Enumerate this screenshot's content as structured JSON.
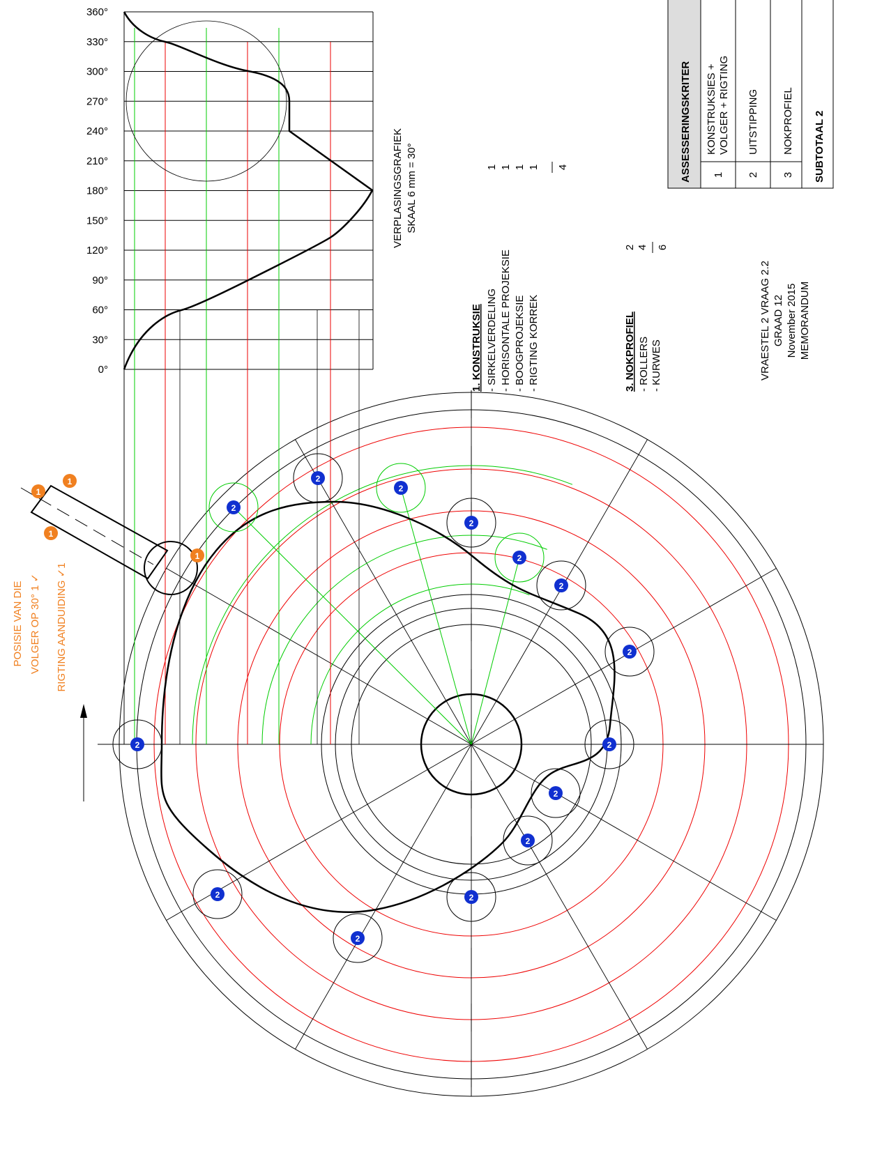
{
  "graph": {
    "angle_labels": [
      "0°",
      "30°",
      "60°",
      "90°",
      "120°",
      "150°",
      "180°",
      "210°",
      "240°",
      "270°",
      "300°",
      "330°",
      "360°"
    ],
    "title": "VERPLASINGSGRAFIEK",
    "scale": "SKAAL 6 mm = 30°"
  },
  "konstruksie": {
    "heading": "1. KONSTRUKSIE",
    "items": [
      {
        "label": "- SIRKELVERDELING",
        "mark": "1"
      },
      {
        "label": "- HORISONTALE PROJEKSIE",
        "mark": "1"
      },
      {
        "label": "- BOOGPROJEKSIE",
        "mark": "1"
      },
      {
        "label": "- RIGTING KORREK",
        "mark": "1"
      }
    ],
    "total": "4"
  },
  "nokprofiel": {
    "heading": "3. NOKPROFIEL",
    "items": [
      {
        "label": "- ROLLERS",
        "mark": "2"
      },
      {
        "label": "- KURWES",
        "mark": "4"
      }
    ],
    "total": "6"
  },
  "memo": [
    "VRAESTEL 2 VRAAG 2.2",
    "GRAAD 12",
    "November 2015",
    "MEMORANDUM"
  ],
  "labels": {
    "direction": "RIGTING AANDUIDING  ✓1",
    "position_1": "POSISIE VAN DIE",
    "position_2": "VOLGER OP 30°  1 ✓"
  },
  "badges": {
    "roller": "2",
    "follower": "1"
  },
  "table": {
    "header": "ASSESSERINGSKRITER",
    "rows": [
      {
        "number": "1",
        "text": [
          "KONSTRUKSIES +",
          "VOLGER + RIGTING"
        ]
      },
      {
        "number": "2",
        "text": [
          "UITSTIPPING"
        ]
      },
      {
        "number": "3",
        "text": [
          "NOKPROFIEL"
        ]
      }
    ],
    "subtotal": "SUBTOTAAL 2"
  }
}
